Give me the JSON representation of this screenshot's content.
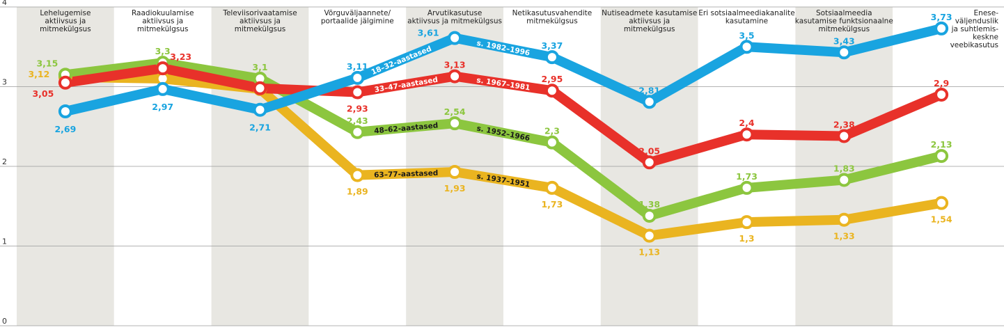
{
  "chart_data": {
    "type": "line",
    "title": "",
    "xlabel": "",
    "ylabel": "",
    "ylim": [
      0,
      4
    ],
    "yticks": [
      "0",
      "1",
      "2",
      "3",
      "4"
    ],
    "categories": [
      [
        "Lehelugemise",
        "aktiivsus ja",
        "mitmekülgsus"
      ],
      [
        "Raadiokuulamise",
        "aktiivsus ja",
        "mitmekülgsus"
      ],
      [
        "Televiisorivaatamise",
        "aktiivsus ja",
        "mitmekülgsus"
      ],
      [
        "Võrguväljaannete/",
        "portaalide jälgimine"
      ],
      [
        "Arvutikasutuse",
        "aktiivsus ja mitmekülgsus"
      ],
      [
        "Netikasutusvahendite",
        "mitmekülgsus"
      ],
      [
        "Nutiseadmete kasutamise",
        "aktiivsus ja",
        "mitmekülgsus"
      ],
      [
        "Eri sotsiaalmeediakanalite",
        "kasutamine"
      ],
      [
        "Sotsiaalmeedia",
        "kasutamise funktsionaalne",
        "mitmekülgsus"
      ],
      [
        "Enese-",
        "väljenduslik",
        "ja suhtlemis-",
        "keskne",
        "veebikasutus"
      ]
    ],
    "series": [
      {
        "name": "63–77-aastased",
        "birth": "s. 1937–1951",
        "color": "#eab420",
        "values": [
          3.12,
          3.1,
          2.97,
          1.89,
          1.93,
          1.73,
          1.13,
          1.3,
          1.33,
          1.54
        ],
        "labels": [
          "3,12",
          "",
          "",
          "1,89",
          "1,93",
          "1,73",
          "1,13",
          "1,3",
          "1,33",
          "1,54"
        ]
      },
      {
        "name": "48–62-aastased",
        "birth": "s. 1952–1966",
        "color": "#8cc63f",
        "values": [
          3.15,
          3.3,
          3.1,
          2.43,
          2.54,
          2.3,
          1.38,
          1.73,
          1.83,
          2.13
        ],
        "labels": [
          "3,15",
          "3,3",
          "3,1",
          "2,43",
          "2,54",
          "2,3",
          "1,38",
          "1,73",
          "1,83",
          "2,13"
        ]
      },
      {
        "name": "33–47-aastased",
        "birth": "s. 1967–1981",
        "color": "#e8312a",
        "values": [
          3.05,
          3.23,
          2.98,
          2.93,
          3.13,
          2.95,
          2.05,
          2.4,
          2.38,
          2.9
        ],
        "labels": [
          "3,05",
          "3,23",
          "",
          "2,93",
          "3,13",
          "2,95",
          "2,05",
          "2,4",
          "2,38",
          "2,9"
        ]
      },
      {
        "name": "18–32-aastased",
        "birth": "s. 1982–1996",
        "color": "#19a4e0",
        "values": [
          2.69,
          2.97,
          2.71,
          3.11,
          3.61,
          3.37,
          2.81,
          3.5,
          3.43,
          3.73
        ],
        "labels": [
          "2,69",
          "2,97",
          "2,71",
          "3,11",
          "3,61",
          "3,37",
          "2,81",
          "3,5",
          "3,43",
          "3,73"
        ]
      }
    ]
  }
}
